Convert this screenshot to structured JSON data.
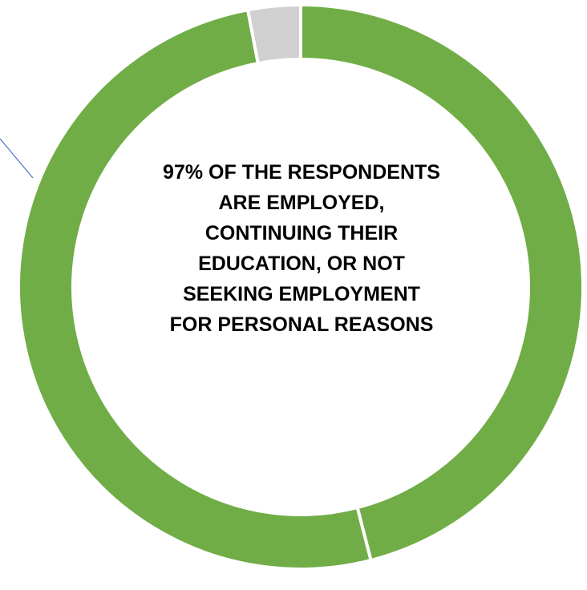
{
  "chart_data": {
    "type": "pie",
    "variant": "donut",
    "categories": [
      "",
      "",
      ""
    ],
    "values": [
      46,
      51,
      3
    ],
    "colors": [
      "#70AD47",
      "#70AD47",
      "#D0D0D0"
    ],
    "center_label": "97% OF THE RESPONDENTS ARE EMPLOYED, CONTINUING THEIR EDUCATION, OR NOT SEEKING EMPLOYMENT FOR PERSONAL REASONS",
    "separator_color": "#ffffff",
    "leader_line_color": "#4472C4"
  }
}
